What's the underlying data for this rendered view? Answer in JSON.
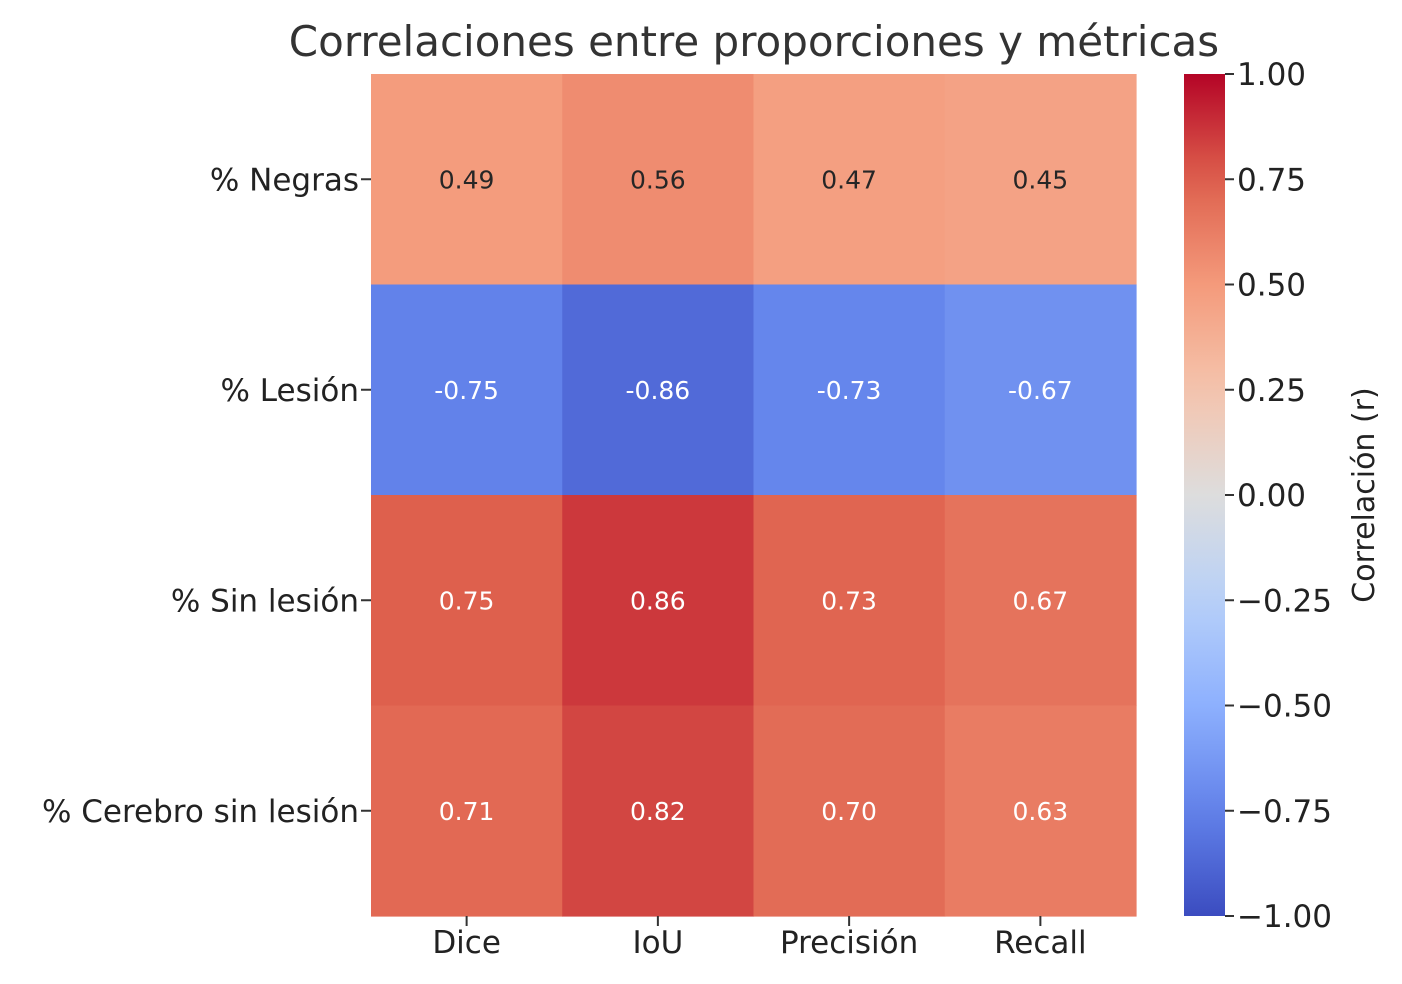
{
  "chart_data": {
    "type": "heatmap",
    "title": "Correlaciones entre proporciones y métricas",
    "xlabel": "",
    "ylabel": "",
    "x_categories": [
      "Dice",
      "IoU",
      "Precisión",
      "Recall"
    ],
    "y_categories": [
      "% Negras",
      "% Lesión",
      "% Sin lesión",
      "% Cerebro sin lesión"
    ],
    "values": [
      [
        0.49,
        0.56,
        0.47,
        0.45
      ],
      [
        -0.75,
        -0.86,
        -0.73,
        -0.67
      ],
      [
        0.75,
        0.86,
        0.73,
        0.67
      ],
      [
        0.71,
        0.82,
        0.7,
        0.63
      ]
    ],
    "value_labels": [
      [
        "0.49",
        "0.56",
        "0.47",
        "0.45"
      ],
      [
        "-0.75",
        "-0.86",
        "-0.73",
        "-0.67"
      ],
      [
        "0.75",
        "0.86",
        "0.73",
        "0.67"
      ],
      [
        "0.71",
        "0.82",
        "0.70",
        "0.63"
      ]
    ],
    "colormap": "coolwarm",
    "vmin": -1.0,
    "vmax": 1.0,
    "colorbar": {
      "label": "Correlación (r)",
      "ticks": [
        1.0,
        0.75,
        0.5,
        0.25,
        0.0,
        -0.25,
        -0.5,
        -0.75,
        -1.0
      ],
      "tick_labels": [
        "1.00",
        "0.75",
        "0.50",
        "0.25",
        "0.00",
        "−0.25",
        "−0.50",
        "−0.75",
        "−1.00"
      ]
    }
  }
}
